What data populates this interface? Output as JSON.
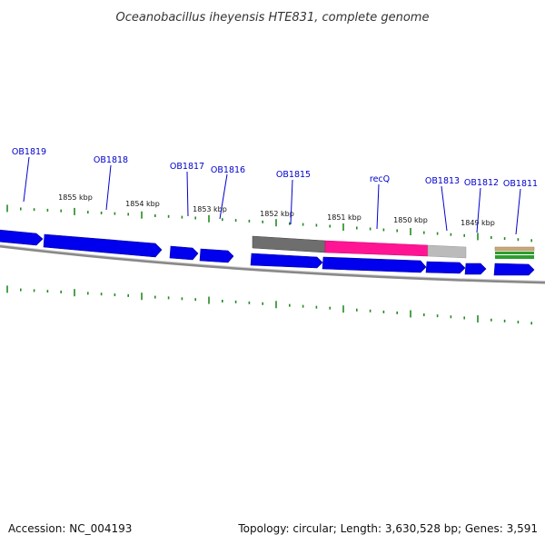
{
  "title": "Oceanobacillus iheyensis HTE831, complete genome",
  "footer": {
    "accession": "Accession: NC_004193",
    "summary": "Topology: circular; Length: 3,630,528 bp; Genes: 3,591"
  },
  "kbp_labels": [
    "1855 kbp",
    "1854 kbp",
    "1853 kbp",
    "1852 kbp",
    "1851 kbp",
    "1850 kbp",
    "1849 kbp"
  ],
  "gene_labels": [
    "OB1819",
    "OB1818",
    "OB1817",
    "OB1816",
    "OB1815",
    "recQ",
    "OB1813",
    "OB1812",
    "OB1811"
  ],
  "colors": {
    "gene": "#0000ee",
    "gene_label": "#0000cc",
    "tick": "#228b22",
    "backbone": "#888888",
    "domain_dark": "#6e6e6e",
    "domain_pink": "#ff1493",
    "domain_light": "#bbbbbb",
    "feature_tan": "#c8a878",
    "feature_green": "#2e9e2e"
  }
}
